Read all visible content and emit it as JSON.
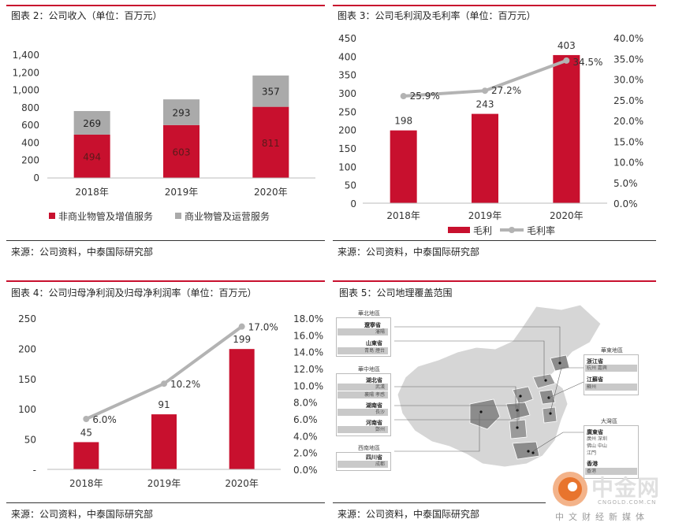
{
  "panels": {
    "revenue": {
      "title": "图表 2：公司收入（单位：百万元）",
      "source": "来源：公司资料，中泰国际研究部"
    },
    "gross": {
      "title": "图表 3：公司毛利润及毛利率（单位：百万元）",
      "source": "来源：公司资料，中泰国际研究部"
    },
    "net": {
      "title": "图表 4：公司归母净利润及归母净利润率（单位：百万元）",
      "source": "来源：公司资料，中泰国际研究部"
    },
    "map": {
      "title": "图表 5：公司地理覆盖范围",
      "source": "来源：公司资料，中泰国际研究部",
      "regions": {
        "north": "華北地區",
        "central": "華中地區",
        "southwest": "西南地區",
        "east": "華東地區",
        "bay": "大灣區"
      },
      "provinces": {
        "liaoning": "遼寧省",
        "liaoning_cities": "瀋陽",
        "shandong": "山東省",
        "shandong_cities": "青島  煙台",
        "hubei": "湖北省",
        "hubei_cities": "武漢",
        "hubei_cities2": "襄陽  孝感",
        "hunan": "湖南省",
        "hunan_cities": "長沙",
        "henan": "河南省",
        "henan_cities": "鄭州",
        "sichuan": "四川省",
        "sichuan_cities": "成都",
        "zhejiang": "浙江省",
        "zhejiang_cities": "杭州    嘉興",
        "jiangsu": "江蘇省",
        "jiangsu_cities": "蘇州",
        "guangdong": "廣東省",
        "guangdong_cities1": "廣州    深圳",
        "guangdong_cities2": "佛山    中山",
        "guangdong_cities3": "江門",
        "hongkong": "香港",
        "hongkong_cities": "香港"
      }
    }
  },
  "watermark": {
    "brand": "中金网",
    "domain": "CNGOLD.COM.CN",
    "slogan": "中文财经新媒体"
  },
  "colors": {
    "red": "#c8102e",
    "gray": "#aaaaaa",
    "line": "#b3b3b3"
  },
  "chart_data": [
    {
      "id": "revenue",
      "type": "bar",
      "stacked": true,
      "categories": [
        "2018年",
        "2019年",
        "2020年"
      ],
      "series": [
        {
          "name": "非商业物管及增值服务",
          "values": [
            494,
            603,
            811
          ]
        },
        {
          "name": "商业物管及运营服务",
          "values": [
            269,
            293,
            357
          ]
        }
      ],
      "ylim": [
        0,
        1400
      ],
      "yticks": [
        "0",
        "200",
        "400",
        "600",
        "800",
        "1,000",
        "1,200",
        "1,400"
      ],
      "legend": "bottom"
    },
    {
      "id": "gross",
      "type": "bar",
      "categories": [
        "2018年",
        "2019年",
        "2020年"
      ],
      "series": [
        {
          "name": "毛利",
          "values": [
            198,
            243,
            403
          ],
          "labels": [
            "198",
            "243",
            "403"
          ]
        },
        {
          "name": "毛利率",
          "type": "line",
          "values": [
            25.9,
            27.2,
            34.5
          ],
          "labels": [
            "25.9%",
            "27.2%",
            "34.5%"
          ]
        }
      ],
      "ylim": [
        0,
        450
      ],
      "yticks": [
        "0",
        "50",
        "100",
        "150",
        "200",
        "250",
        "300",
        "350",
        "400",
        "450"
      ],
      "y2lim": [
        0,
        40
      ],
      "y2ticks": [
        "0.0%",
        "5.0%",
        "10.0%",
        "15.0%",
        "20.0%",
        "25.0%",
        "30.0%",
        "35.0%",
        "40.0%"
      ],
      "legend": "bottom"
    },
    {
      "id": "net",
      "type": "bar",
      "categories": [
        "2018年",
        "2019年",
        "2020年"
      ],
      "series": [
        {
          "name": "",
          "values": [
            45,
            91,
            199
          ],
          "labels": [
            "45",
            "91",
            "199"
          ]
        },
        {
          "name": "",
          "type": "line",
          "values": [
            6.0,
            10.2,
            17.0
          ],
          "labels": [
            "6.0%",
            "10.2%",
            "17.0%"
          ]
        }
      ],
      "ylim": [
        0,
        250
      ],
      "yticks": [
        "-",
        "50",
        "100",
        "150",
        "200",
        "250"
      ],
      "y2lim": [
        0,
        18
      ],
      "y2ticks": [
        "0.0%",
        "2.0%",
        "4.0%",
        "6.0%",
        "8.0%",
        "10.0%",
        "12.0%",
        "14.0%",
        "16.0%",
        "18.0%"
      ]
    }
  ]
}
